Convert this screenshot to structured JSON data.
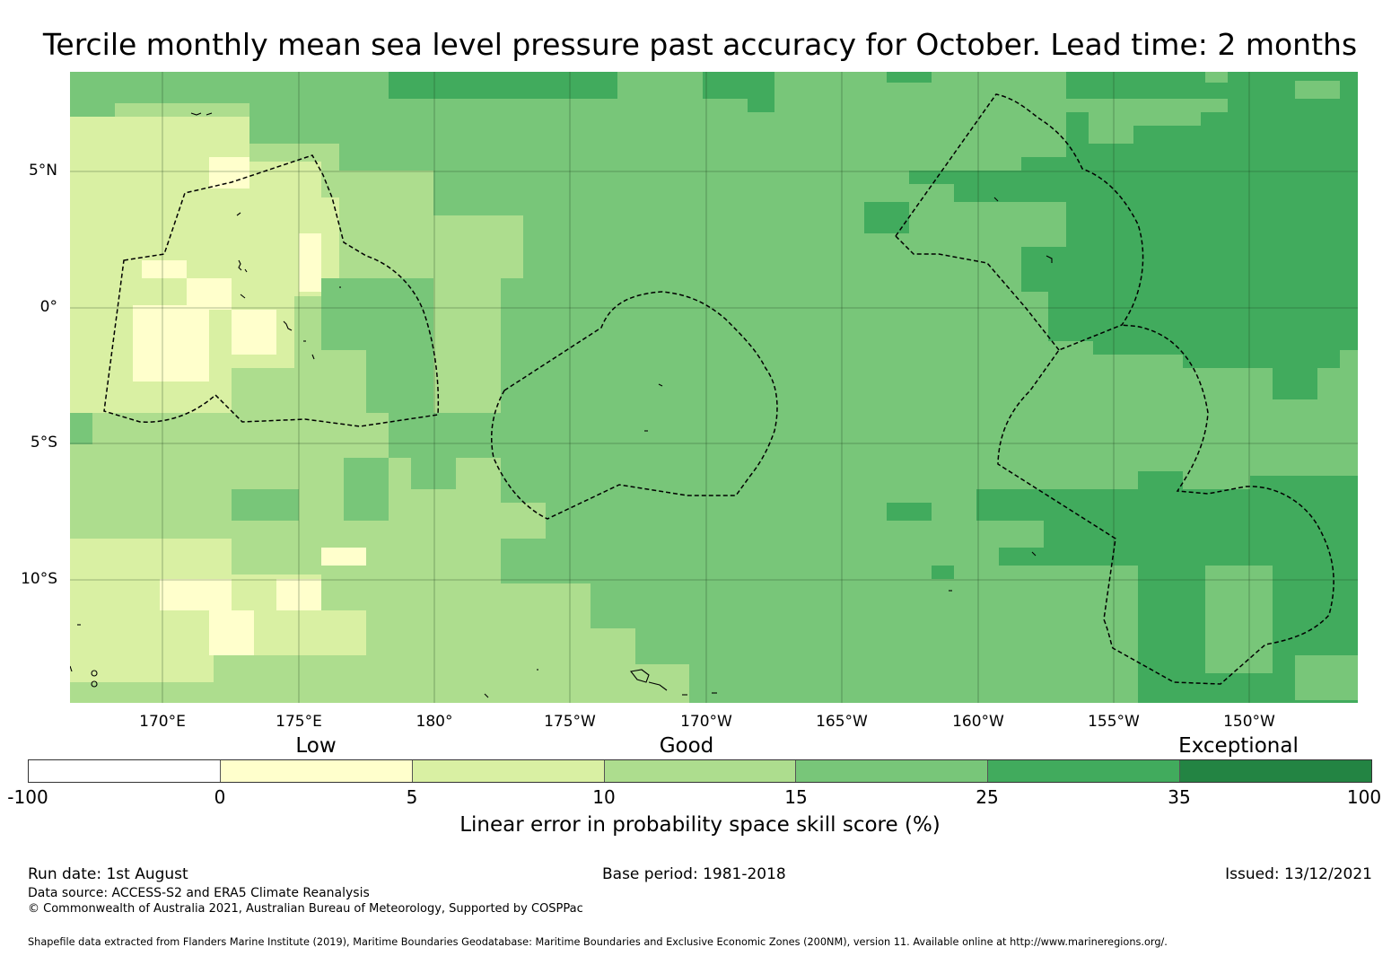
{
  "title": "Tercile monthly mean sea level pressure past accuracy for October. Lead time: 2 months",
  "lat_labels": [
    "5°N",
    "0°",
    "5°S",
    "10°S"
  ],
  "lon_labels": [
    "170°E",
    "175°E",
    "180°",
    "175°W",
    "170°W",
    "165°W",
    "160°W",
    "155°W",
    "150°W"
  ],
  "categories": [
    "Low",
    "Good",
    "Exceptional"
  ],
  "colorbar": {
    "ticks": [
      "-100",
      "0",
      "5",
      "10",
      "15",
      "25",
      "35",
      "100"
    ],
    "colors": [
      "#ffffff",
      "#ffffcc",
      "#d9f0a3",
      "#addd8e",
      "#78c679",
      "#41ab5d",
      "#238443"
    ],
    "label": "Linear error in probability space skill score (%)"
  },
  "map_extent": {
    "lon_min": 166.6,
    "lon_max": -146.2,
    "lat_min": -14.6,
    "lat_max": 8.7
  },
  "run_date": "Run date: 1st August",
  "base_period": "Base period: 1981-2018",
  "issued": "Issued: 13/12/2021",
  "data_source": "Data source: ACCESS-S2 and ERA5 Climate Reanalysis",
  "copyright": "© Commonwealth of Australia 2021, Australian Bureau of Meteorology, Supported by COSPPac",
  "shapefile_note": "Shapefile data extracted from Flanders Marine Institute (2019), Maritime Boundaries Geodatabase: Maritime Boundaries and Exclusive Economic Zones (200NM), version 11. Available online at http://www.marineregions.org/."
}
